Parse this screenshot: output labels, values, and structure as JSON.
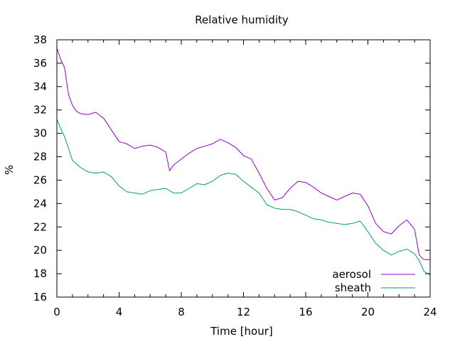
{
  "chart_data": {
    "type": "line",
    "title": "Relative humidity",
    "xlabel": "Time [hour]",
    "ylabel": "%",
    "xlim": [
      0,
      24
    ],
    "ylim": [
      16,
      38
    ],
    "xticks": [
      0,
      4,
      8,
      12,
      16,
      20,
      24
    ],
    "yticks": [
      16,
      18,
      20,
      22,
      24,
      26,
      28,
      30,
      32,
      34,
      36,
      38
    ],
    "grid": false,
    "legend_position": "bottom-right",
    "series": [
      {
        "name": "aerosol",
        "color": "#9400d3",
        "points": [
          [
            0,
            37.3
          ],
          [
            0.25,
            36.3
          ],
          [
            0.5,
            35.6
          ],
          [
            0.75,
            33.3
          ],
          [
            1,
            32.4
          ],
          [
            1.25,
            31.9
          ],
          [
            1.5,
            31.7
          ],
          [
            2,
            31.6
          ],
          [
            2.5,
            31.8
          ],
          [
            3,
            31.3
          ],
          [
            3.5,
            30.3
          ],
          [
            4,
            29.3
          ],
          [
            4.5,
            29.1
          ],
          [
            5,
            28.7
          ],
          [
            5.5,
            28.9
          ],
          [
            6,
            29.0
          ],
          [
            6.5,
            28.8
          ],
          [
            7,
            28.4
          ],
          [
            7.25,
            26.8
          ],
          [
            7.5,
            27.3
          ],
          [
            8,
            27.8
          ],
          [
            8.5,
            28.3
          ],
          [
            9,
            28.7
          ],
          [
            9.5,
            28.9
          ],
          [
            10,
            29.1
          ],
          [
            10.5,
            29.5
          ],
          [
            11,
            29.2
          ],
          [
            11.5,
            28.8
          ],
          [
            12,
            28.1
          ],
          [
            12.5,
            27.8
          ],
          [
            13,
            26.6
          ],
          [
            13.5,
            25.3
          ],
          [
            14,
            24.3
          ],
          [
            14.5,
            24.5
          ],
          [
            15,
            25.3
          ],
          [
            15.5,
            25.9
          ],
          [
            16,
            25.8
          ],
          [
            16.5,
            25.4
          ],
          [
            17,
            24.9
          ],
          [
            17.5,
            24.6
          ],
          [
            18,
            24.3
          ],
          [
            18.5,
            24.6
          ],
          [
            19,
            24.9
          ],
          [
            19.5,
            24.8
          ],
          [
            20,
            23.8
          ],
          [
            20.5,
            22.3
          ],
          [
            21,
            21.6
          ],
          [
            21.5,
            21.4
          ],
          [
            22,
            22.1
          ],
          [
            22.5,
            22.6
          ],
          [
            23,
            21.8
          ],
          [
            23.3,
            19.6
          ],
          [
            23.6,
            19.2
          ],
          [
            24,
            19.2
          ]
        ]
      },
      {
        "name": "sheath",
        "color": "#009e73",
        "points": [
          [
            0,
            31.2
          ],
          [
            0.25,
            30.4
          ],
          [
            0.5,
            29.7
          ],
          [
            0.75,
            28.7
          ],
          [
            1,
            27.7
          ],
          [
            1.5,
            27.1
          ],
          [
            2,
            26.7
          ],
          [
            2.5,
            26.6
          ],
          [
            3,
            26.7
          ],
          [
            3.5,
            26.3
          ],
          [
            4,
            25.5
          ],
          [
            4.5,
            25.0
          ],
          [
            5,
            24.9
          ],
          [
            5.5,
            24.8
          ],
          [
            6,
            25.1
          ],
          [
            6.5,
            25.2
          ],
          [
            7,
            25.3
          ],
          [
            7.5,
            24.9
          ],
          [
            8,
            24.9
          ],
          [
            8.5,
            25.3
          ],
          [
            9,
            25.7
          ],
          [
            9.5,
            25.6
          ],
          [
            10,
            25.9
          ],
          [
            10.5,
            26.4
          ],
          [
            11,
            26.6
          ],
          [
            11.5,
            26.5
          ],
          [
            12,
            25.9
          ],
          [
            12.5,
            25.4
          ],
          [
            13,
            24.9
          ],
          [
            13.5,
            23.9
          ],
          [
            14,
            23.6
          ],
          [
            14.5,
            23.5
          ],
          [
            15,
            23.5
          ],
          [
            15.5,
            23.3
          ],
          [
            16,
            23.0
          ],
          [
            16.5,
            22.7
          ],
          [
            17,
            22.6
          ],
          [
            17.5,
            22.4
          ],
          [
            18,
            22.3
          ],
          [
            18.5,
            22.2
          ],
          [
            19,
            22.3
          ],
          [
            19.5,
            22.5
          ],
          [
            20,
            21.6
          ],
          [
            20.5,
            20.6
          ],
          [
            21,
            20.0
          ],
          [
            21.5,
            19.6
          ],
          [
            22,
            19.9
          ],
          [
            22.5,
            20.1
          ],
          [
            23,
            19.7
          ],
          [
            23.3,
            19.1
          ],
          [
            23.6,
            18.2
          ],
          [
            24,
            17.9
          ]
        ]
      }
    ]
  }
}
